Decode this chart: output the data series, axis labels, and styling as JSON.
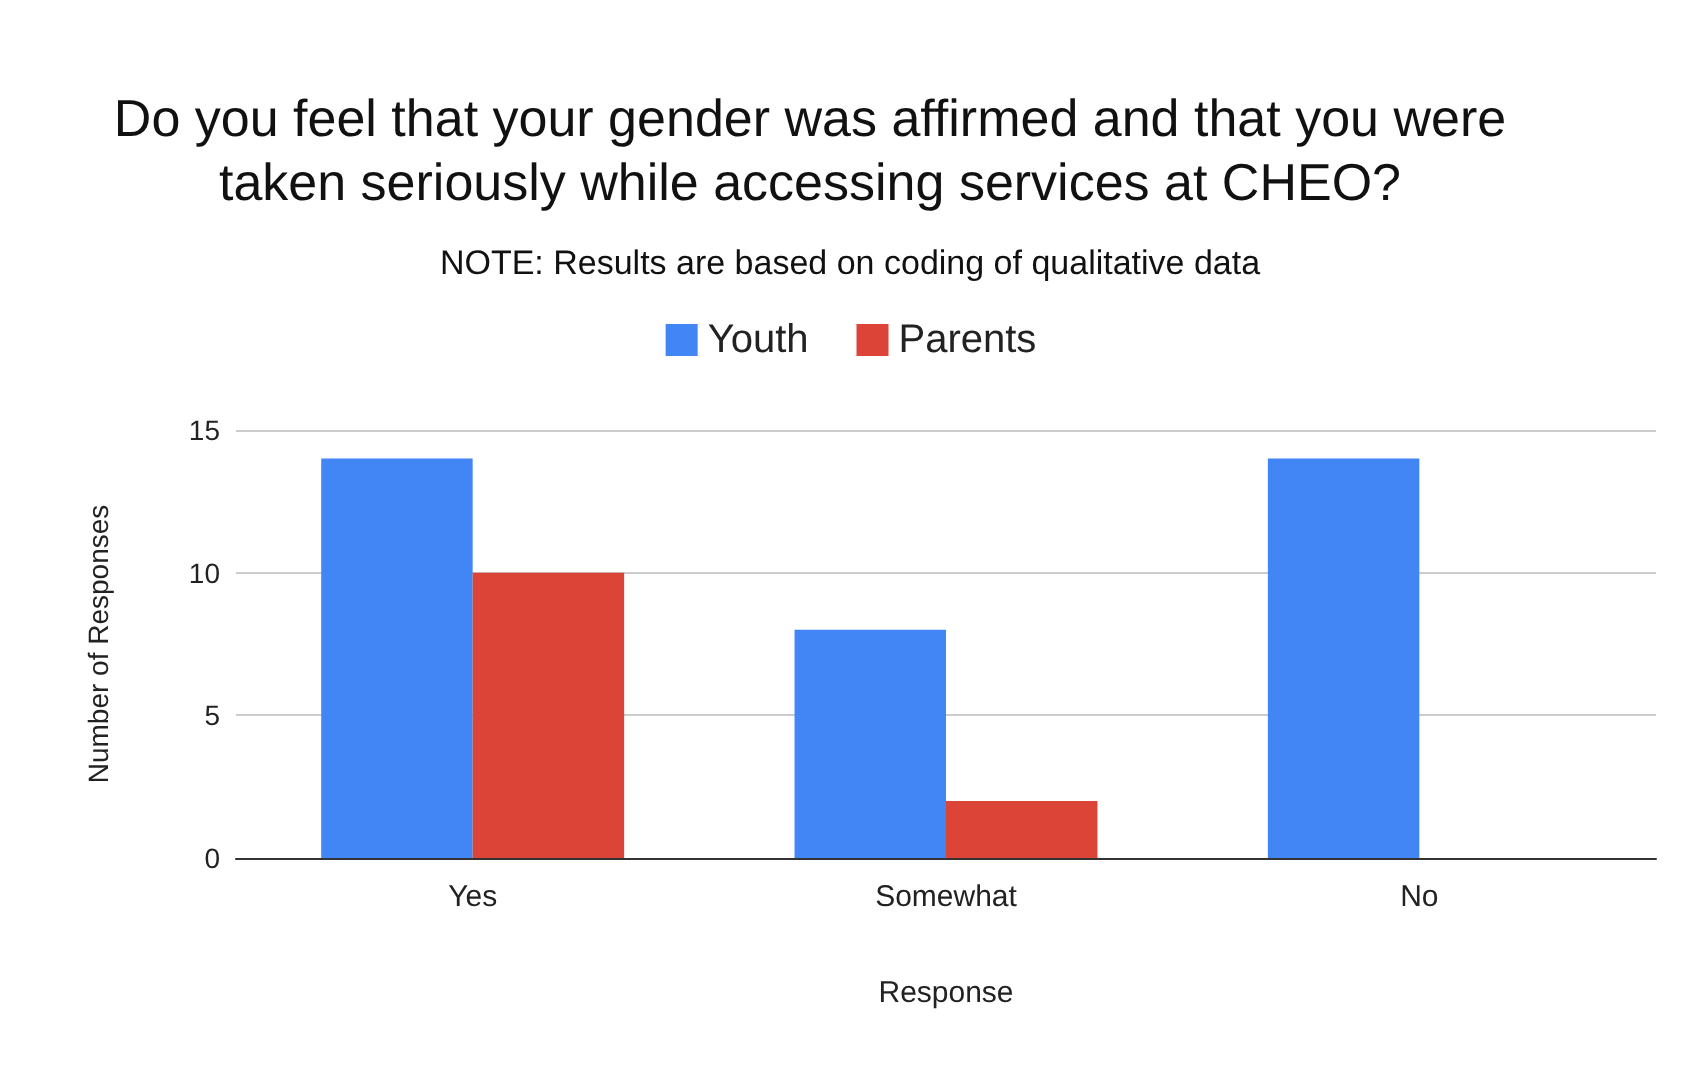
{
  "chart_data": {
    "type": "bar",
    "title": "Do you feel that your gender was affirmed and that you were\ntaken seriously while accessing services at CHEO?",
    "subtitle": "NOTE: Results are based on coding of qualitative data",
    "xlabel": "Response",
    "ylabel": "Number of Responses",
    "categories": [
      "Yes",
      "Somewhat",
      "No"
    ],
    "series": [
      {
        "name": "Youth",
        "color": "#4285f4",
        "values": [
          14,
          8,
          14
        ]
      },
      {
        "name": "Parents",
        "color": "#db4437",
        "values": [
          10,
          2,
          0
        ]
      }
    ],
    "ylim": [
      0,
      15
    ],
    "yticks": [
      0,
      5,
      10,
      15
    ],
    "grid": "y",
    "legend": "top"
  }
}
